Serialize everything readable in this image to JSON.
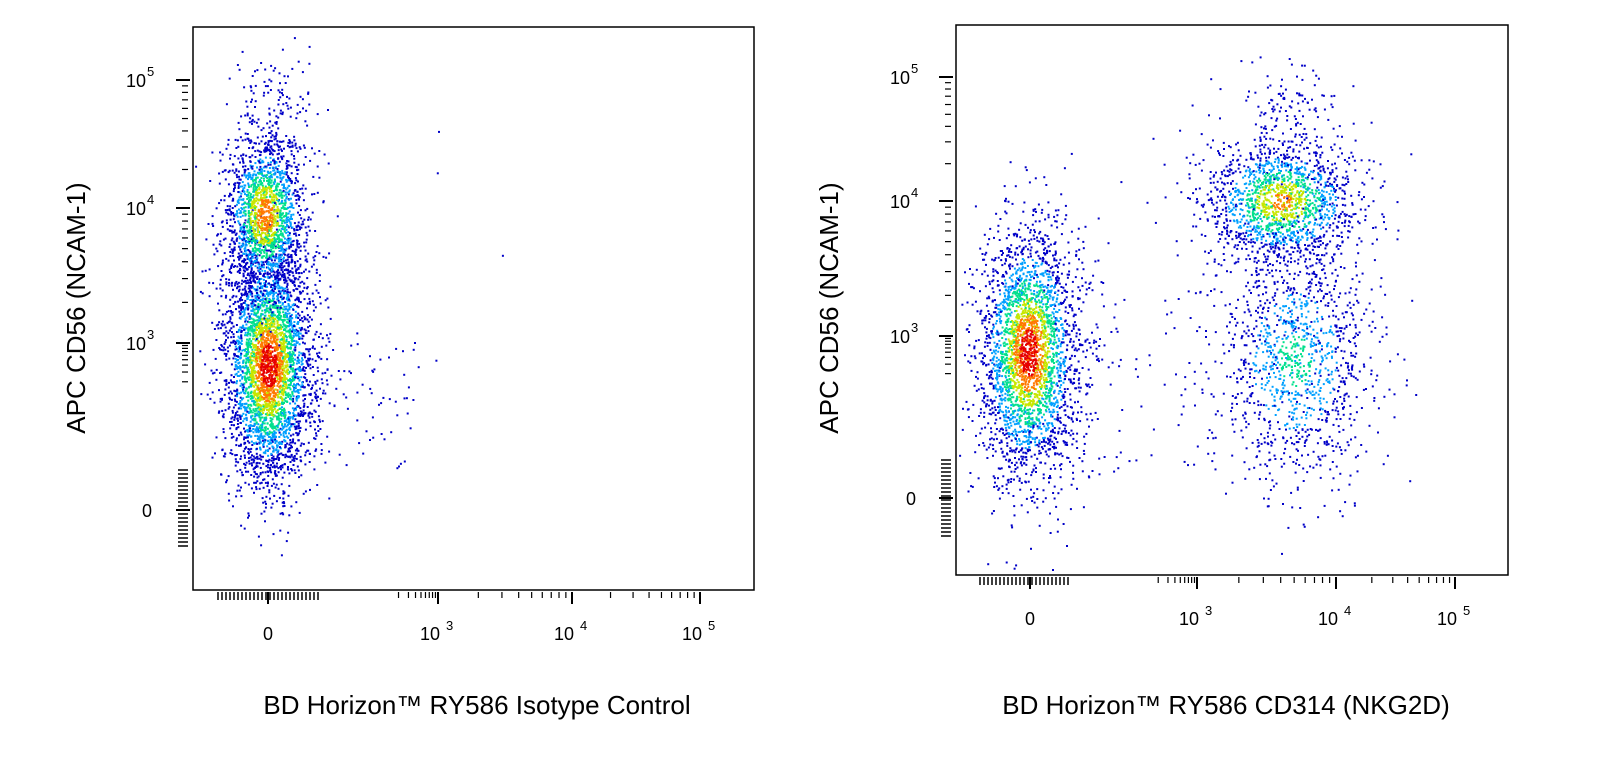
{
  "chart_data": [
    {
      "type": "scatter",
      "panel": "left",
      "xlabel": "BD Horizon™ RY586 Isotype Control",
      "ylabel": "APC  CD56 (NCAM-1)",
      "x_scale": "biexponential",
      "y_scale": "biexponential",
      "x_tick_labels": [
        {
          "value": 0,
          "label": "0"
        },
        {
          "value": 1000,
          "label": "10",
          "sup": "3"
        },
        {
          "value": 10000,
          "label": "10",
          "sup": "4"
        },
        {
          "value": 100000,
          "label": "10",
          "sup": "5"
        }
      ],
      "y_tick_labels": [
        {
          "value": 0,
          "label": "0"
        },
        {
          "value": 1000,
          "label": "10",
          "sup": "3"
        },
        {
          "value": 10000,
          "label": "10",
          "sup": "4"
        },
        {
          "value": 100000,
          "label": "10",
          "sup": "5"
        }
      ],
      "color_scale": [
        "#0000c8",
        "#00a0ff",
        "#00e08c",
        "#c8e600",
        "#ff7800",
        "#e60000"
      ],
      "populations": [
        {
          "x_center": 0,
          "y_center": 400,
          "relative_size": 0.62
        },
        {
          "x_center": 0,
          "y_center": 9000,
          "relative_size": 0.38
        }
      ],
      "sparse_events": [
        [
          1000,
          40000
        ],
        [
          3000,
          4500
        ],
        [
          950,
          19000
        ],
        [
          900,
          500
        ]
      ]
    },
    {
      "type": "scatter",
      "panel": "right",
      "xlabel": "BD Horizon™ RY586  CD314 (NKG2D)",
      "ylabel": "APC  CD56 (NCAM-1)",
      "x_scale": "biexponential",
      "y_scale": "biexponential",
      "x_tick_labels": [
        {
          "value": 0,
          "label": "0"
        },
        {
          "value": 1000,
          "label": "10",
          "sup": "3"
        },
        {
          "value": 10000,
          "label": "10",
          "sup": "4"
        },
        {
          "value": 100000,
          "label": "10",
          "sup": "5"
        }
      ],
      "y_tick_labels": [
        {
          "value": 0,
          "label": "0"
        },
        {
          "value": 1000,
          "label": "10",
          "sup": "3"
        },
        {
          "value": 10000,
          "label": "10",
          "sup": "4"
        },
        {
          "value": 100000,
          "label": "10",
          "sup": "5"
        }
      ],
      "color_scale": [
        "#0000c8",
        "#00a0ff",
        "#00e08c",
        "#c8e600",
        "#ff7800",
        "#e60000"
      ],
      "populations": [
        {
          "x_center": 0,
          "y_center": 500,
          "relative_size": 0.5
        },
        {
          "x_center": 4000,
          "y_center": 10000,
          "relative_size": 0.3
        },
        {
          "x_center": 5000,
          "y_center": 350,
          "relative_size": 0.2
        }
      ],
      "sparse_events": [
        [
          800,
          60000
        ],
        [
          1200,
          50000
        ],
        [
          250,
          20000
        ],
        [
          500,
          12000
        ]
      ]
    }
  ]
}
